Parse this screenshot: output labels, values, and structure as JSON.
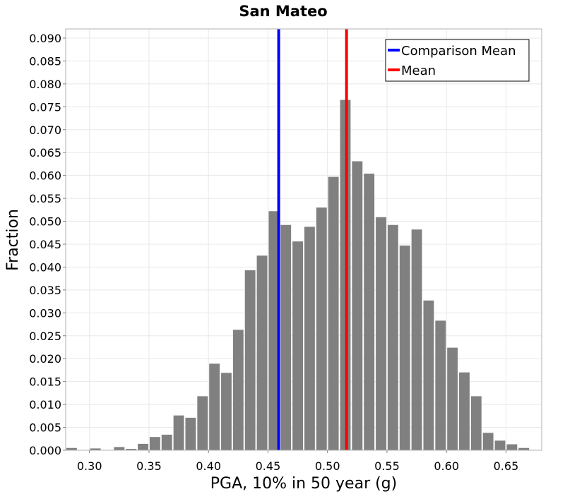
{
  "chart_data": {
    "type": "bar",
    "title": "San Mateo",
    "xlabel": "PGA, 10% in 50 year (g)",
    "ylabel": "Fraction",
    "xlim": [
      0.28,
      0.68
    ],
    "ylim": [
      0,
      0.092
    ],
    "grid": true,
    "bar_color": "#808080",
    "bin_width": 0.01,
    "x_ticks": [
      "0.30",
      "0.35",
      "0.40",
      "0.45",
      "0.50",
      "0.55",
      "0.60",
      "0.65"
    ],
    "y_ticks": [
      "0.000",
      "0.005",
      "0.010",
      "0.015",
      "0.020",
      "0.025",
      "0.030",
      "0.035",
      "0.040",
      "0.045",
      "0.050",
      "0.055",
      "0.060",
      "0.065",
      "0.070",
      "0.075",
      "0.080",
      "0.085",
      "0.090"
    ],
    "bins": [
      {
        "x": 0.285,
        "y": 0.0005
      },
      {
        "x": 0.305,
        "y": 0.0004
      },
      {
        "x": 0.325,
        "y": 0.0007
      },
      {
        "x": 0.335,
        "y": 0.0003
      },
      {
        "x": 0.345,
        "y": 0.0014
      },
      {
        "x": 0.355,
        "y": 0.0029
      },
      {
        "x": 0.365,
        "y": 0.0034
      },
      {
        "x": 0.375,
        "y": 0.0076
      },
      {
        "x": 0.385,
        "y": 0.0071
      },
      {
        "x": 0.395,
        "y": 0.0118
      },
      {
        "x": 0.405,
        "y": 0.0189
      },
      {
        "x": 0.415,
        "y": 0.0169
      },
      {
        "x": 0.425,
        "y": 0.0263
      },
      {
        "x": 0.435,
        "y": 0.0393
      },
      {
        "x": 0.445,
        "y": 0.0425
      },
      {
        "x": 0.455,
        "y": 0.0522
      },
      {
        "x": 0.465,
        "y": 0.0492
      },
      {
        "x": 0.475,
        "y": 0.0456
      },
      {
        "x": 0.485,
        "y": 0.0488
      },
      {
        "x": 0.495,
        "y": 0.053
      },
      {
        "x": 0.505,
        "y": 0.0597
      },
      {
        "x": 0.515,
        "y": 0.0765
      },
      {
        "x": 0.525,
        "y": 0.0631
      },
      {
        "x": 0.535,
        "y": 0.0604
      },
      {
        "x": 0.545,
        "y": 0.0509
      },
      {
        "x": 0.555,
        "y": 0.0492
      },
      {
        "x": 0.565,
        "y": 0.0447
      },
      {
        "x": 0.575,
        "y": 0.0482
      },
      {
        "x": 0.585,
        "y": 0.0327
      },
      {
        "x": 0.595,
        "y": 0.0283
      },
      {
        "x": 0.605,
        "y": 0.0224
      },
      {
        "x": 0.615,
        "y": 0.017
      },
      {
        "x": 0.625,
        "y": 0.0118
      },
      {
        "x": 0.635,
        "y": 0.0038
      },
      {
        "x": 0.645,
        "y": 0.0021
      },
      {
        "x": 0.655,
        "y": 0.0013
      },
      {
        "x": 0.665,
        "y": 0.0005
      }
    ],
    "vlines": [
      {
        "name": "Comparison Mean",
        "x": 0.459,
        "color": "#0000ff"
      },
      {
        "name": "Mean",
        "x": 0.516,
        "color": "#ff0000"
      }
    ],
    "legend": [
      {
        "name": "Comparison Mean",
        "color": "#0000ff"
      },
      {
        "name": "Mean",
        "color": "#ff0000"
      }
    ],
    "legend_position": "top-right"
  }
}
